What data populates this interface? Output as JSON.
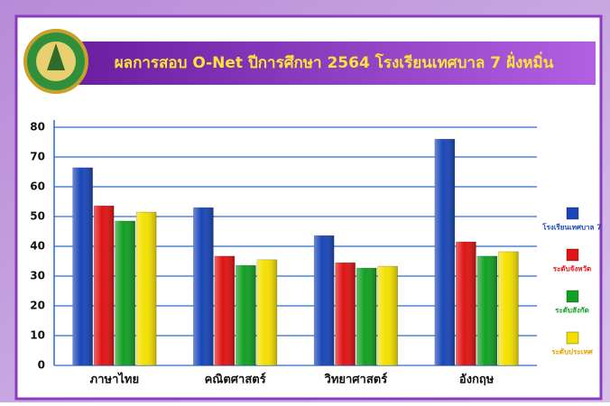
{
  "chart_data": {
    "type": "bar",
    "title": "ผลการสอบ O-Net ปีการศึกษา 2564 โรงเรียนเทศบาล 7 ฝั่งหมิ่น",
    "categories": [
      "ภาษาไทย",
      "คณิตศาสตร์",
      "วิทยาศาสตร์",
      "อังกฤษ"
    ],
    "series": [
      {
        "name": "โรงเรียนเทศบาล 7",
        "color": "#1a47b8",
        "values": [
          66.4,
          53,
          43.6,
          76
        ]
      },
      {
        "name": "ระดับจังหวัด",
        "color": "#e01414",
        "values": [
          53.6,
          36.7,
          34.5,
          41.5
        ]
      },
      {
        "name": "ระดับสังกัด",
        "color": "#12a024",
        "values": [
          48.5,
          33.6,
          32.7,
          36.7
        ]
      },
      {
        "name": "ระดับประเทศ",
        "color": "#f4e000",
        "values": [
          51.5,
          35.5,
          33.3,
          38.2
        ]
      }
    ],
    "ylim": [
      0,
      80
    ],
    "yticks": [
      0,
      10,
      20,
      30,
      40,
      50,
      60,
      70,
      80
    ],
    "grid": true,
    "legend": "right"
  }
}
